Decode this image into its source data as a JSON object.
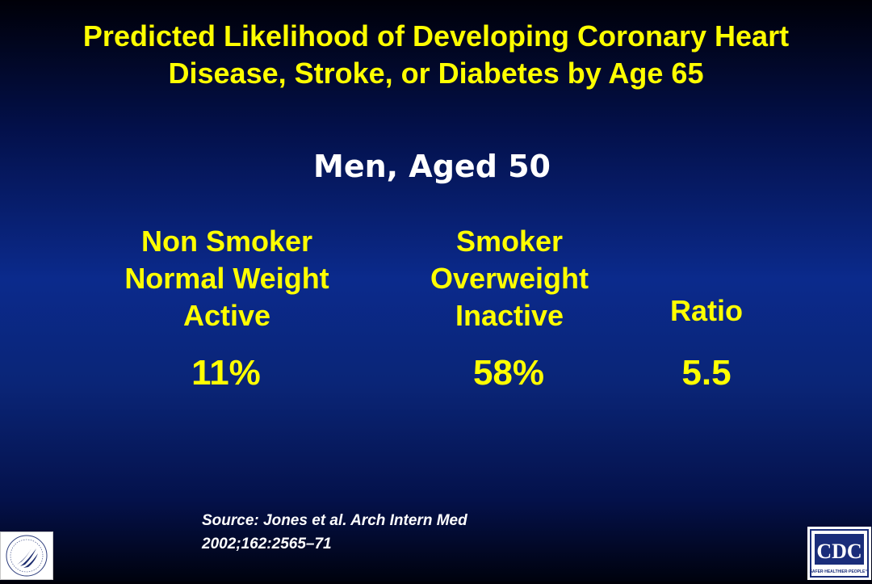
{
  "slide": {
    "title_line1": "Predicted Likelihood of Developing Coronary Heart",
    "title_line2": "Disease, Stroke, or Diabetes by Age 65",
    "subtitle": "Men, Aged 50",
    "columns": [
      {
        "lines": [
          "Non Smoker",
          "Normal Weight",
          "Active"
        ],
        "value": "11%"
      },
      {
        "lines": [
          "Smoker",
          "Overweight",
          "Inactive"
        ],
        "value": "58%"
      },
      {
        "lines": [
          "Ratio"
        ],
        "value": "5.5"
      }
    ],
    "source_line1": "Source: Jones et al. Arch Intern Med",
    "source_line2": "2002;162:2565–71"
  },
  "logos": {
    "left": {
      "icon": "hhs-eagle-seal-icon"
    },
    "right": {
      "text": "CDC",
      "tagline": "SAFER·HEALTHIER·PEOPLE™",
      "color": "#1a2d7a"
    }
  },
  "colors": {
    "title": "#ffff00",
    "subtitle": "#ffffff",
    "background": "#0b2a8c"
  }
}
